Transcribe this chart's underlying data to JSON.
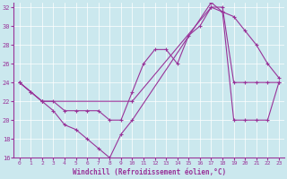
{
  "xlabel": "Windchill (Refroidissement éolien,°C)",
  "bg_color": "#cbe8ee",
  "line_color": "#993399",
  "xlim": [
    -0.5,
    23.5
  ],
  "ylim": [
    16,
    32.5
  ],
  "yticks": [
    16,
    18,
    20,
    22,
    24,
    26,
    28,
    30,
    32
  ],
  "xticks": [
    0,
    1,
    2,
    3,
    4,
    5,
    6,
    7,
    8,
    9,
    10,
    11,
    12,
    13,
    14,
    15,
    16,
    17,
    18,
    19,
    20,
    21,
    22,
    23
  ],
  "series": [
    {
      "x": [
        0,
        1,
        2,
        3,
        4,
        5,
        6,
        7,
        8,
        9,
        10,
        11,
        12,
        13,
        14,
        15,
        16,
        17,
        18,
        19,
        20,
        21,
        22,
        23
      ],
      "y": [
        24,
        23,
        22,
        22,
        21,
        21,
        21,
        21,
        20,
        20,
        23,
        26,
        27.5,
        27.5,
        26,
        29,
        30,
        32,
        31.5,
        31,
        29.5,
        28,
        26,
        24.5
      ]
    },
    {
      "x": [
        0,
        1,
        2,
        3,
        4,
        5,
        6,
        7,
        8,
        9,
        10,
        17,
        18,
        19,
        20,
        21,
        22,
        23
      ],
      "y": [
        24,
        23,
        22,
        21,
        19.5,
        19,
        18,
        17,
        16,
        18.5,
        20,
        32.5,
        31.5,
        20,
        20,
        20,
        20,
        24
      ]
    },
    {
      "x": [
        0,
        2,
        10,
        17,
        18,
        19,
        20,
        21,
        22,
        23
      ],
      "y": [
        24,
        22,
        22,
        32,
        32,
        24,
        24,
        24,
        24,
        24
      ]
    }
  ]
}
